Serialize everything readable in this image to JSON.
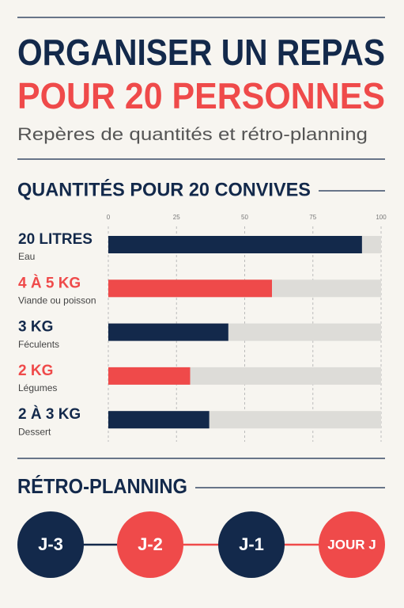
{
  "header": {
    "title_line1": "ORGANISER UN REPAS",
    "title_line2": "POUR 20 PERSONNES",
    "subtitle": "Repères de quantités et rétro-planning"
  },
  "chart_data": {
    "type": "hbar",
    "title": "QUANTITÉS POUR 20 CONVIVES",
    "categories": [
      "20 LITRES",
      "4 À 5 KG",
      "3 KG",
      "2 KG",
      "2 À 3 KG"
    ],
    "sublabels": [
      "Eau",
      "Viande ou poisson",
      "Féculents",
      "Légumes",
      "Dessert"
    ],
    "values": [
      93,
      60,
      44,
      30,
      37
    ],
    "colors": [
      "#13294b",
      "#ef4a4a",
      "#13294b",
      "#ef4a4a",
      "#13294b"
    ],
    "track_color": "#dddcd8",
    "xlim": [
      0,
      100
    ],
    "xticks": [
      0,
      25,
      50,
      75,
      100
    ],
    "grid": true
  },
  "planning": {
    "title": "RÉTRO-PLANNING",
    "steps": [
      {
        "label": "J-3",
        "color": "#13294b"
      },
      {
        "label": "J-2",
        "color": "#ef4a4a"
      },
      {
        "label": "J-1",
        "color": "#13294b"
      },
      {
        "label": "JOUR J",
        "color": "#ef4a4a"
      }
    ]
  }
}
